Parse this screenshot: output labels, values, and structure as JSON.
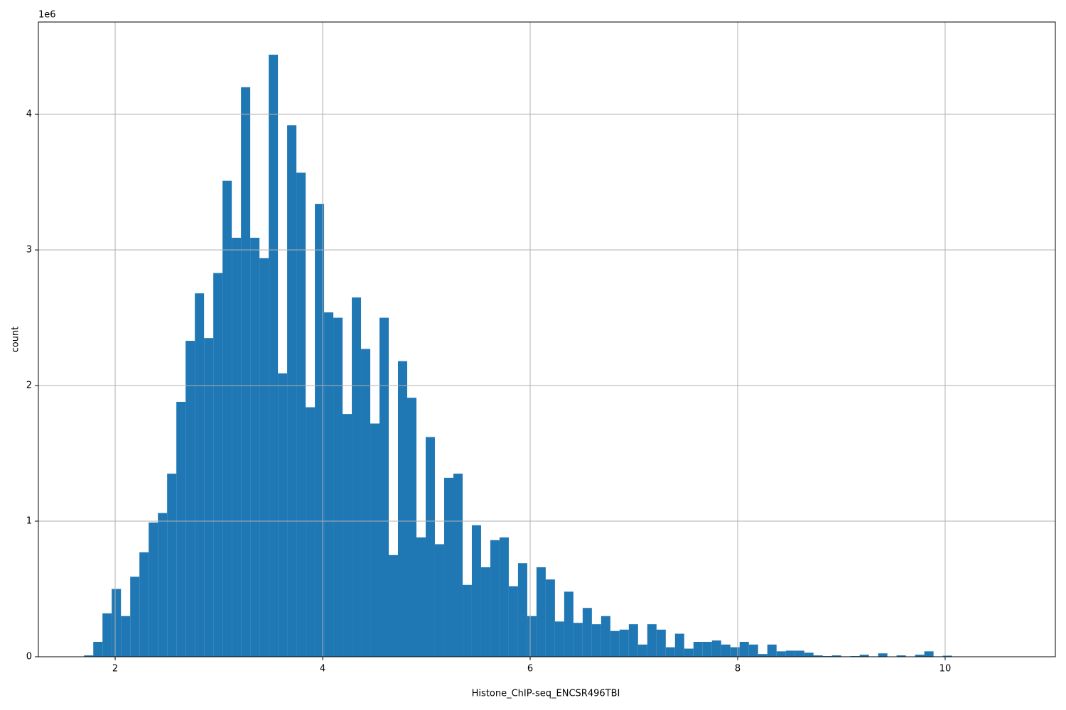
{
  "chart_data": {
    "type": "histogram",
    "xlabel": "Histone_ChIP-seq_ENCSR496TBI",
    "ylabel": "count",
    "y_offset_label": "1e6",
    "color": "#1f77b4",
    "grid": true,
    "xlim": [
      1.26,
      11.062
    ],
    "ylim": [
      0,
      4.681
    ],
    "xticks": [
      2,
      4,
      6,
      8,
      10
    ],
    "yticks": [
      0,
      1,
      2,
      3,
      4
    ],
    "bins": [
      1.7,
      1.789,
      1.878,
      1.967,
      2.056,
      2.145,
      2.234,
      2.323,
      2.412,
      2.501,
      2.59,
      2.679,
      2.768,
      2.857,
      2.946,
      3.035,
      3.124,
      3.213,
      3.302,
      3.391,
      3.48,
      3.569,
      3.658,
      3.747,
      3.836,
      3.925,
      4.014,
      4.103,
      4.192,
      4.281,
      4.37,
      4.459,
      4.548,
      4.637,
      4.726,
      4.815,
      4.904,
      4.993,
      5.082,
      5.171,
      5.26,
      5.349,
      5.438,
      5.527,
      5.616,
      5.705,
      5.794,
      5.883,
      5.972,
      6.061,
      6.15,
      6.239,
      6.328,
      6.417,
      6.506,
      6.595,
      6.684,
      6.773,
      6.862,
      6.951,
      7.04,
      7.129,
      7.218,
      7.307,
      7.396,
      7.485,
      7.574,
      7.663,
      7.752,
      7.841,
      7.93,
      8.019,
      8.108,
      8.197,
      8.286,
      8.375,
      8.464,
      8.553,
      8.642,
      8.731,
      8.82,
      8.909,
      8.998,
      9.087,
      9.176,
      9.265,
      9.354,
      9.443,
      9.532,
      9.621,
      9.71,
      9.799,
      9.888,
      9.977,
      10.066,
      10.155,
      10.244,
      10.333,
      10.422,
      10.511,
      10.6
    ],
    "values": [
      0.01,
      0.11,
      0.32,
      0.5,
      0.3,
      0.59,
      0.77,
      0.99,
      1.06,
      1.35,
      1.88,
      2.33,
      2.68,
      2.35,
      2.83,
      3.51,
      3.09,
      4.2,
      3.09,
      2.94,
      4.44,
      2.09,
      3.92,
      3.57,
      1.84,
      3.34,
      2.54,
      2.5,
      1.79,
      2.65,
      2.27,
      1.72,
      2.5,
      0.75,
      2.18,
      1.91,
      0.88,
      1.62,
      0.83,
      1.32,
      1.35,
      0.53,
      0.97,
      0.66,
      0.86,
      0.88,
      0.52,
      0.69,
      0.3,
      0.66,
      0.57,
      0.26,
      0.48,
      0.25,
      0.36,
      0.24,
      0.3,
      0.19,
      0.2,
      0.24,
      0.09,
      0.24,
      0.2,
      0.07,
      0.17,
      0.06,
      0.11,
      0.11,
      0.12,
      0.09,
      0.07,
      0.11,
      0.09,
      0.02,
      0.09,
      0.04,
      0.045,
      0.045,
      0.03,
      0.01,
      0.005,
      0.01,
      0.003,
      0.005,
      0.015,
      0.003,
      0.025,
      0.002,
      0.01,
      0.002,
      0.015,
      0.04,
      0.003,
      0.008,
      0.001,
      0,
      0,
      0,
      0,
      0.001
    ]
  }
}
